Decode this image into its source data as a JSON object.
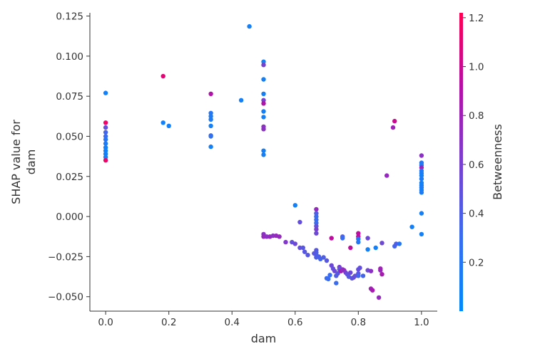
{
  "chart_data": {
    "type": "scatter",
    "title": "",
    "xlabel": "dam",
    "ylabel_lines": [
      "SHAP value for",
      "dam"
    ],
    "xlim": [
      -0.05,
      1.05
    ],
    "ylim": [
      -0.059,
      0.127
    ],
    "x_ticks": [
      {
        "value": 0.0,
        "label": "0.0"
      },
      {
        "value": 0.2,
        "label": "0.2"
      },
      {
        "value": 0.4,
        "label": "0.4"
      },
      {
        "value": 0.6,
        "label": "0.6"
      },
      {
        "value": 0.8,
        "label": "0.8"
      },
      {
        "value": 1.0,
        "label": "1.0"
      }
    ],
    "y_ticks": [
      {
        "value": -0.05,
        "label": "−0.050"
      },
      {
        "value": -0.025,
        "label": "−0.025"
      },
      {
        "value": 0.0,
        "label": "0.000"
      },
      {
        "value": 0.025,
        "label": "0.025"
      },
      {
        "value": 0.05,
        "label": "0.050"
      },
      {
        "value": 0.075,
        "label": "0.075"
      },
      {
        "value": 0.1,
        "label": "0.100"
      },
      {
        "value": 0.125,
        "label": "0.125"
      }
    ],
    "colorbar": {
      "label": "Betweenness",
      "vmin": 0.0,
      "vmax": 1.22,
      "colors": [
        "#008afb",
        "#3a6cf0",
        "#7a3fd0",
        "#b50fa8",
        "#ff0052"
      ],
      "ticks": [
        {
          "value": 0.2,
          "label": "0.2"
        },
        {
          "value": 0.4,
          "label": "0.4"
        },
        {
          "value": 0.6,
          "label": "0.6"
        },
        {
          "value": 0.8,
          "label": "0.8"
        },
        {
          "value": 1.0,
          "label": "1.0"
        },
        {
          "value": 1.2,
          "label": "1.2"
        }
      ]
    },
    "points": [
      [
        0.0,
        0.077,
        0.1
      ],
      [
        0.0,
        0.0585,
        1.15
      ],
      [
        0.0,
        0.0555,
        0.5
      ],
      [
        0.0,
        0.0525,
        0.35
      ],
      [
        0.0,
        0.05,
        0.3
      ],
      [
        0.0,
        0.048,
        0.2
      ],
      [
        0.0,
        0.0455,
        0.15
      ],
      [
        0.0,
        0.043,
        0.1
      ],
      [
        0.0,
        0.041,
        0.1
      ],
      [
        0.0,
        0.039,
        0.1
      ],
      [
        0.0,
        0.037,
        0.1
      ],
      [
        0.0,
        0.035,
        1.15
      ],
      [
        0.182,
        0.0875,
        1.1
      ],
      [
        0.182,
        0.0585,
        0.1
      ],
      [
        0.2,
        0.0565,
        0.1
      ],
      [
        0.333,
        0.0765,
        0.9
      ],
      [
        0.333,
        0.0645,
        0.2
      ],
      [
        0.333,
        0.0625,
        0.15
      ],
      [
        0.333,
        0.0605,
        0.15
      ],
      [
        0.333,
        0.0565,
        0.1
      ],
      [
        0.333,
        0.0505,
        0.3
      ],
      [
        0.333,
        0.05,
        0.25
      ],
      [
        0.333,
        0.0435,
        0.1
      ],
      [
        0.429,
        0.0725,
        0.1
      ],
      [
        0.455,
        0.1185,
        0.1
      ],
      [
        0.5,
        0.0965,
        0.1
      ],
      [
        0.5,
        0.0945,
        0.6
      ],
      [
        0.5,
        0.0855,
        0.1
      ],
      [
        0.5,
        0.0765,
        0.1
      ],
      [
        0.5,
        0.0725,
        0.6
      ],
      [
        0.5,
        0.0705,
        0.9
      ],
      [
        0.5,
        0.0655,
        0.1
      ],
      [
        0.5,
        0.062,
        0.1
      ],
      [
        0.5,
        0.056,
        0.7
      ],
      [
        0.5,
        0.0545,
        0.7
      ],
      [
        0.5,
        0.041,
        0.1
      ],
      [
        0.5,
        0.0385,
        0.1
      ],
      [
        0.5,
        -0.011,
        0.7
      ],
      [
        0.5,
        -0.0125,
        0.75
      ],
      [
        0.51,
        -0.0125,
        0.7
      ],
      [
        0.52,
        -0.0125,
        0.75
      ],
      [
        0.53,
        -0.012,
        0.7
      ],
      [
        0.54,
        -0.012,
        0.75
      ],
      [
        0.55,
        -0.0125,
        0.75
      ],
      [
        0.57,
        -0.016,
        0.65
      ],
      [
        0.6,
        0.007,
        0.1
      ],
      [
        0.59,
        -0.016,
        0.5
      ],
      [
        0.6,
        -0.017,
        0.55
      ],
      [
        0.615,
        -0.0035,
        0.5
      ],
      [
        0.615,
        -0.0195,
        0.5
      ],
      [
        0.625,
        -0.0195,
        0.45
      ],
      [
        0.63,
        -0.022,
        0.45
      ],
      [
        0.64,
        -0.024,
        0.45
      ],
      [
        0.667,
        0.0045,
        0.75
      ],
      [
        0.667,
        0.002,
        0.4
      ],
      [
        0.667,
        0.0,
        0.3
      ],
      [
        0.667,
        -0.002,
        0.3
      ],
      [
        0.667,
        -0.004,
        0.3
      ],
      [
        0.667,
        -0.006,
        0.5
      ],
      [
        0.667,
        -0.008,
        0.6
      ],
      [
        0.667,
        -0.0105,
        0.55
      ],
      [
        0.667,
        -0.021,
        0.45
      ],
      [
        0.667,
        -0.0225,
        0.4
      ],
      [
        0.667,
        -0.024,
        0.35
      ],
      [
        0.667,
        -0.0255,
        0.4
      ],
      [
        0.66,
        -0.023,
        0.45
      ],
      [
        0.675,
        -0.025,
        0.4
      ],
      [
        0.68,
        -0.0265,
        0.35
      ],
      [
        0.69,
        -0.0255,
        0.4
      ],
      [
        0.7,
        -0.0275,
        0.45
      ],
      [
        0.7,
        -0.0385,
        0.3
      ],
      [
        0.705,
        -0.039,
        0.3
      ],
      [
        0.71,
        -0.0365,
        0.3
      ],
      [
        0.715,
        -0.0135,
        0.95
      ],
      [
        0.715,
        -0.0305,
        0.55
      ],
      [
        0.72,
        -0.0325,
        0.5
      ],
      [
        0.725,
        -0.034,
        0.55
      ],
      [
        0.73,
        -0.0415,
        0.3
      ],
      [
        0.73,
        -0.037,
        0.4
      ],
      [
        0.735,
        -0.0355,
        0.45
      ],
      [
        0.74,
        -0.0315,
        0.6
      ],
      [
        0.74,
        -0.033,
        0.45
      ],
      [
        0.745,
        -0.034,
        0.85
      ],
      [
        0.75,
        -0.0125,
        0.4
      ],
      [
        0.75,
        -0.0135,
        0.3
      ],
      [
        0.75,
        -0.033,
        0.7
      ],
      [
        0.755,
        -0.0335,
        0.75
      ],
      [
        0.76,
        -0.035,
        0.6
      ],
      [
        0.765,
        -0.036,
        0.5
      ],
      [
        0.77,
        -0.0375,
        0.45
      ],
      [
        0.775,
        -0.0195,
        0.95
      ],
      [
        0.775,
        -0.035,
        0.55
      ],
      [
        0.78,
        -0.0385,
        0.45
      ],
      [
        0.785,
        -0.038,
        0.5
      ],
      [
        0.79,
        -0.037,
        0.5
      ],
      [
        0.8,
        -0.0105,
        0.95
      ],
      [
        0.8,
        -0.0125,
        0.95
      ],
      [
        0.8,
        -0.014,
        0.2
      ],
      [
        0.8,
        -0.016,
        0.2
      ],
      [
        0.8,
        -0.033,
        0.5
      ],
      [
        0.8,
        -0.0355,
        0.45
      ],
      [
        0.8,
        -0.037,
        0.35
      ],
      [
        0.805,
        -0.032,
        0.5
      ],
      [
        0.815,
        -0.037,
        0.35
      ],
      [
        0.83,
        -0.0205,
        0.1
      ],
      [
        0.83,
        -0.0335,
        0.55
      ],
      [
        0.83,
        -0.0135,
        0.55
      ],
      [
        0.84,
        -0.034,
        0.7
      ],
      [
        0.84,
        -0.045,
        0.8
      ],
      [
        0.845,
        -0.046,
        0.85
      ],
      [
        0.855,
        -0.0195,
        0.1
      ],
      [
        0.865,
        -0.0505,
        0.75
      ],
      [
        0.87,
        -0.0335,
        0.75
      ],
      [
        0.87,
        -0.0325,
        0.8
      ],
      [
        0.875,
        -0.0165,
        0.55
      ],
      [
        0.875,
        -0.036,
        0.85
      ],
      [
        0.89,
        0.0255,
        0.75
      ],
      [
        0.91,
        0.0555,
        0.8
      ],
      [
        0.915,
        0.0595,
        1.0
      ],
      [
        0.915,
        -0.0185,
        0.35
      ],
      [
        0.92,
        -0.017,
        0.4
      ],
      [
        0.93,
        -0.017,
        0.2
      ],
      [
        0.97,
        -0.0065,
        0.1
      ],
      [
        1.0,
        0.038,
        0.7
      ],
      [
        1.0,
        0.0335,
        0.2
      ],
      [
        1.0,
        0.032,
        0.15
      ],
      [
        1.0,
        0.0305,
        0.8
      ],
      [
        1.0,
        0.0285,
        0.15
      ],
      [
        1.0,
        0.027,
        0.15
      ],
      [
        1.0,
        0.0255,
        0.1
      ],
      [
        1.0,
        0.0235,
        0.15
      ],
      [
        1.0,
        0.021,
        0.1
      ],
      [
        1.0,
        0.0195,
        0.1
      ],
      [
        1.0,
        0.018,
        0.15
      ],
      [
        1.0,
        0.0165,
        0.1
      ],
      [
        1.0,
        0.015,
        0.15
      ],
      [
        1.0,
        0.002,
        0.1
      ],
      [
        1.0,
        -0.011,
        0.1
      ]
    ]
  }
}
